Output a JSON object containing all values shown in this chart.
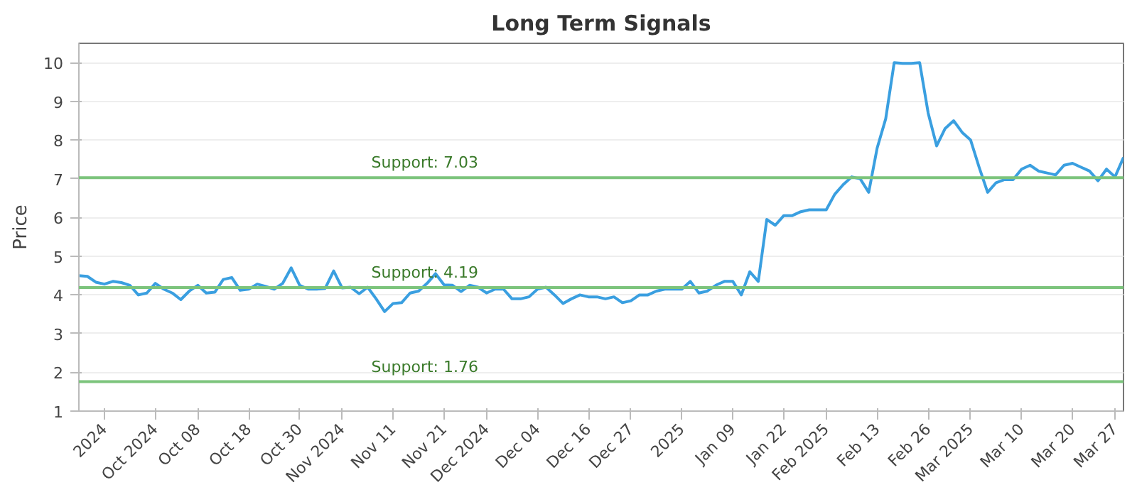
{
  "chart_data": {
    "type": "line",
    "title": "Long Term Signals",
    "ylabel": "Price",
    "categories": [
      null,
      null,
      null,
      "2024",
      null,
      null,
      null,
      null,
      null,
      "Oct 2024",
      null,
      null,
      null,
      null,
      "Oct 08",
      null,
      null,
      null,
      null,
      null,
      "Oct 18",
      null,
      null,
      null,
      null,
      null,
      "Oct 30",
      null,
      null,
      null,
      null,
      "Nov 2024",
      null,
      null,
      null,
      null,
      null,
      "Nov 11",
      null,
      null,
      null,
      null,
      null,
      "Nov 21",
      null,
      null,
      null,
      null,
      "Dec 2024",
      null,
      null,
      null,
      null,
      null,
      "Dec 04",
      null,
      null,
      null,
      null,
      null,
      "Dec 16",
      null,
      null,
      null,
      null,
      "Dec 27",
      null,
      null,
      null,
      null,
      null,
      "2025",
      null,
      null,
      null,
      null,
      null,
      "Jan 09",
      null,
      null,
      null,
      null,
      null,
      "Jan 22",
      null,
      null,
      null,
      null,
      "Feb 2025",
      null,
      null,
      null,
      null,
      null,
      "Feb 13",
      null,
      null,
      null,
      null,
      null,
      "Feb 26",
      null,
      null,
      null,
      null,
      "Mar 2025",
      null,
      null,
      null,
      null,
      null,
      "Mar 10",
      null,
      null,
      null,
      null,
      null,
      "Mar 20",
      null,
      null,
      null,
      null,
      "Mar 27",
      null
    ],
    "series": [
      {
        "color": "#3a9fe0",
        "values": [
          4.5,
          4.48,
          4.33,
          4.28,
          4.35,
          4.32,
          4.25,
          4.0,
          4.05,
          4.3,
          4.15,
          4.05,
          3.88,
          4.1,
          4.25,
          4.05,
          4.07,
          4.4,
          4.45,
          4.12,
          4.15,
          4.28,
          4.22,
          4.15,
          4.3,
          4.7,
          4.25,
          4.15,
          4.15,
          4.17,
          4.62,
          4.18,
          4.2,
          4.03,
          4.2,
          3.9,
          3.57,
          3.78,
          3.8,
          4.05,
          4.1,
          4.3,
          4.55,
          4.26,
          4.25,
          4.09,
          4.25,
          4.2,
          4.05,
          4.15,
          4.15,
          3.9,
          3.9,
          3.95,
          4.15,
          4.2,
          4.0,
          3.78,
          3.9,
          4.0,
          3.95,
          3.95,
          3.9,
          3.95,
          3.8,
          3.85,
          4.0,
          4.0,
          4.1,
          4.15,
          4.15,
          4.15,
          4.35,
          4.05,
          4.1,
          4.25,
          4.35,
          4.35,
          4.0,
          4.6,
          4.35,
          5.95,
          5.8,
          6.05,
          6.05,
          6.15,
          6.2,
          6.2,
          6.2,
          6.6,
          6.85,
          7.05,
          7.0,
          6.65,
          7.8,
          8.55,
          10.0,
          9.98,
          9.98,
          10.0,
          8.7,
          7.85,
          8.3,
          8.5,
          8.2,
          8.0,
          7.3,
          6.65,
          6.9,
          6.98,
          6.98,
          7.25,
          7.35,
          7.2,
          7.15,
          7.1,
          7.35,
          7.4,
          7.3,
          7.2,
          6.95,
          7.25,
          7.05,
          7.55
        ]
      }
    ],
    "ylim": [
      1,
      10.5
    ],
    "yticks": [
      1,
      2,
      3,
      4,
      5,
      6,
      7,
      8,
      9,
      10
    ],
    "grid": "y",
    "marker": "none",
    "line_style": "solid",
    "ref_lines": [
      {
        "axis": "y",
        "value": 7.03,
        "label": "Support: 7.03",
        "color": "#7cc47c"
      },
      {
        "axis": "y",
        "value": 4.19,
        "label": "Support: 4.19",
        "color": "#7cc47c"
      },
      {
        "axis": "y",
        "value": 1.76,
        "label": "Support: 1.76",
        "color": "#7cc47c"
      }
    ]
  }
}
